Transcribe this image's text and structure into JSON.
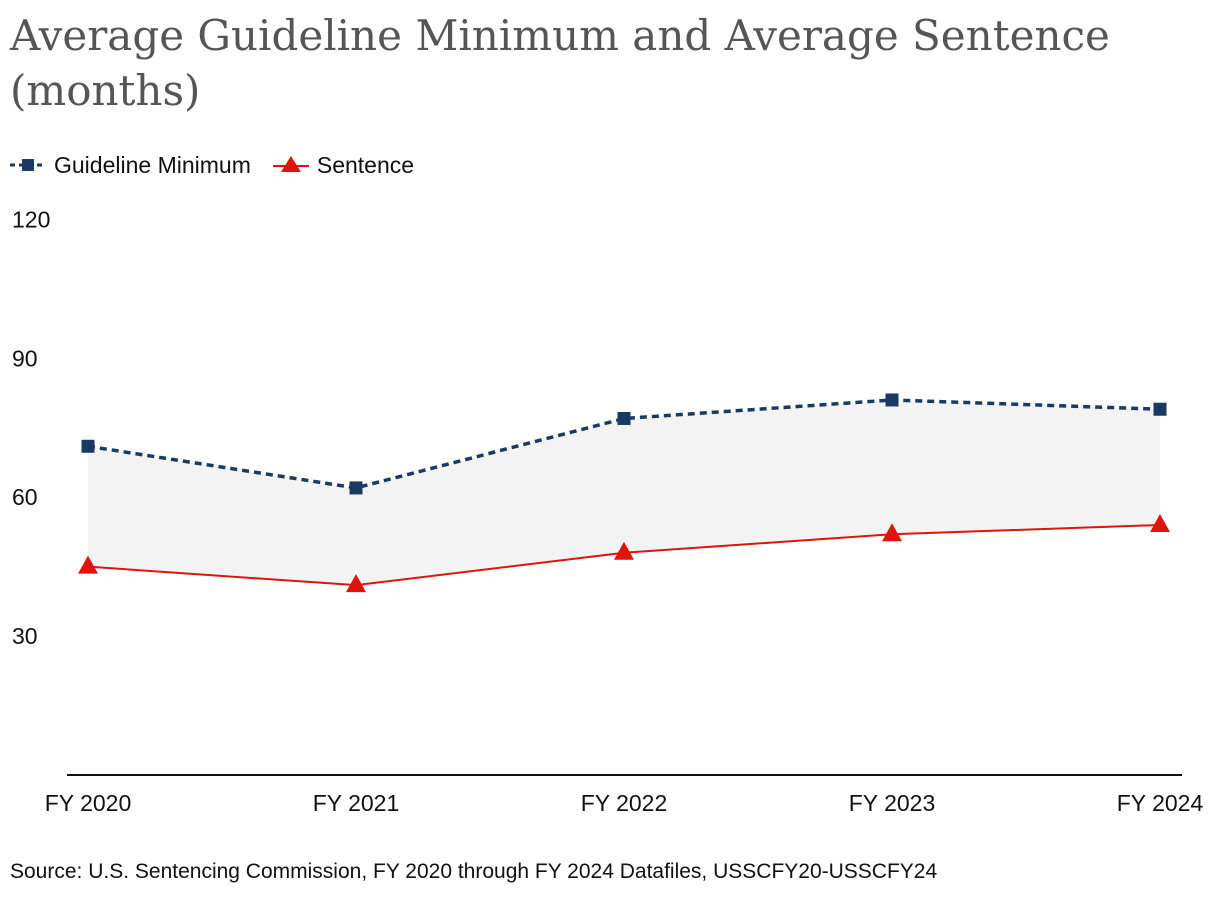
{
  "chart_data": {
    "type": "line",
    "title": "Average Guideline Minimum and Average Sentence (months)",
    "categories": [
      "FY 2020",
      "FY 2021",
      "FY 2022",
      "FY 2023",
      "FY 2024"
    ],
    "series": [
      {
        "name": "Guideline Minimum",
        "values": [
          71,
          62,
          77,
          81,
          79
        ],
        "color": "#1b3a63",
        "style": "dashed",
        "marker": "square"
      },
      {
        "name": "Sentence",
        "values": [
          45,
          41,
          48,
          52,
          54
        ],
        "color": "#e0140b",
        "style": "solid",
        "marker": "triangle"
      }
    ],
    "yticks": [
      30,
      60,
      90,
      120
    ],
    "ylim": [
      0,
      120
    ],
    "shade_between_series": true,
    "shade_color": "#f3f3f3",
    "xlabel": "",
    "ylabel": "",
    "legend_position": "top-left",
    "source": "Source: U.S. Sentencing Commission, FY 2020 through FY 2024 Datafiles, USSCFY20-USSCFY24"
  }
}
